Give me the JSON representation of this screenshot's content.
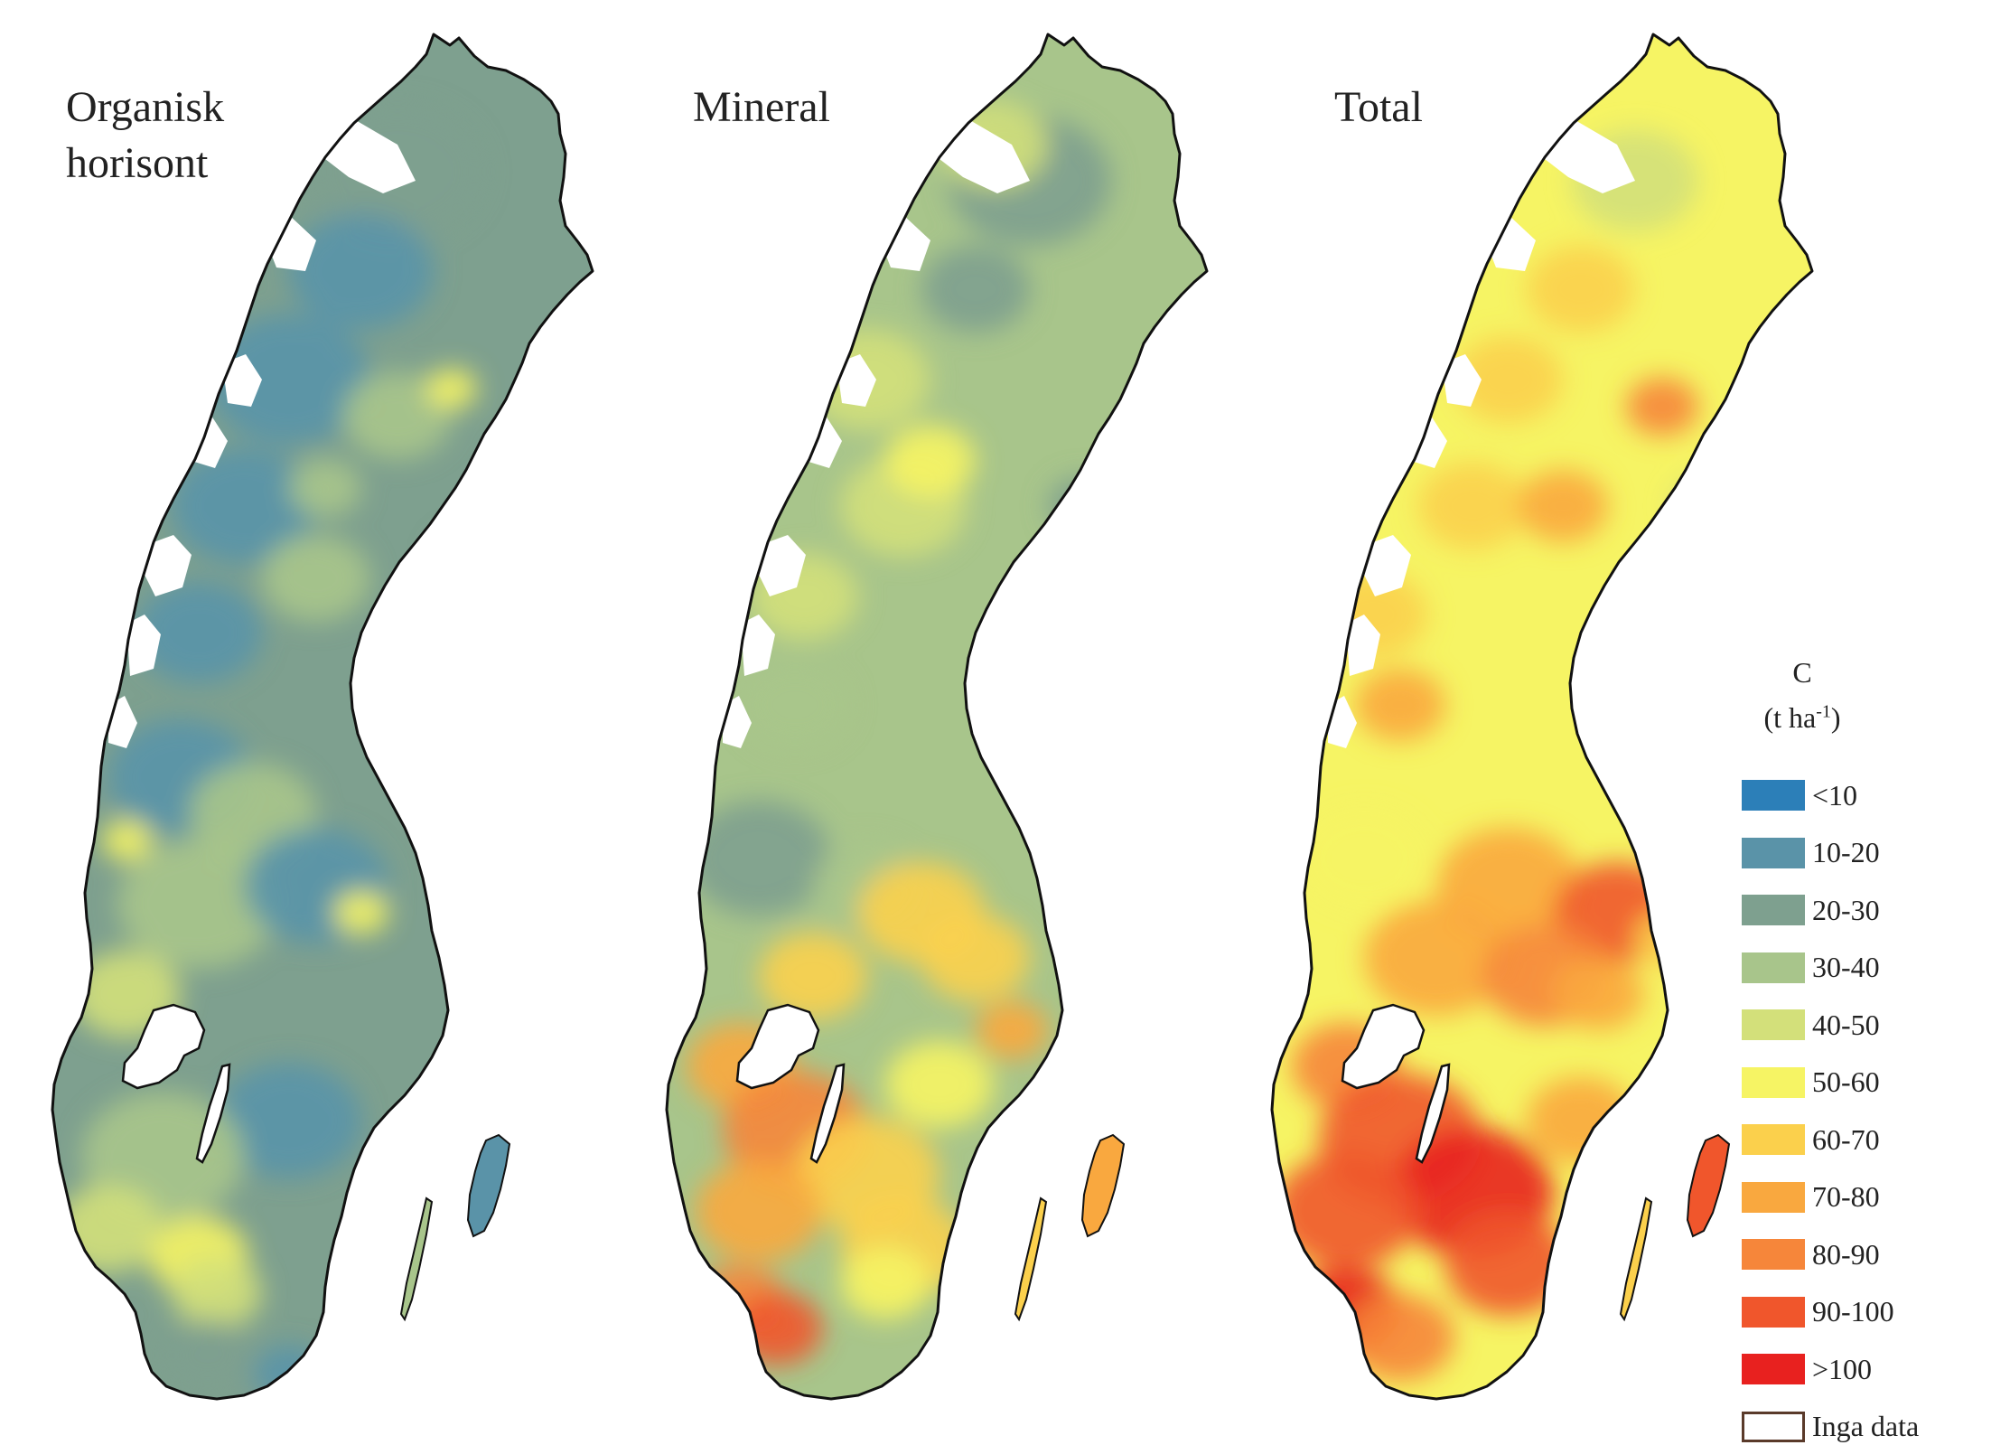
{
  "panels": [
    {
      "id": "organic",
      "title": "Organisk\nhorisont",
      "scheme": "organic"
    },
    {
      "id": "mineral",
      "title": "Mineral",
      "scheme": "mineral"
    },
    {
      "id": "total",
      "title": "Total",
      "scheme": "total"
    }
  ],
  "legend": {
    "title": "C",
    "unit": "(t ha",
    "unit_sup": "-1",
    "unit_end": ")",
    "classes": [
      {
        "label": "<10",
        "color": "#2c7fb8"
      },
      {
        "label": "10-20",
        "color": "#5a93a8"
      },
      {
        "label": "20-30",
        "color": "#7ea08f"
      },
      {
        "label": "30-40",
        "color": "#a8c58b"
      },
      {
        "label": "40-50",
        "color": "#d3e07a"
      },
      {
        "label": "50-60",
        "color": "#f6f464"
      },
      {
        "label": "60-70",
        "color": "#fbd04c"
      },
      {
        "label": "70-80",
        "color": "#f9a83f"
      },
      {
        "label": "80-90",
        "color": "#f6863a"
      },
      {
        "label": "90-100",
        "color": "#f0562c"
      },
      {
        "label": ">100",
        "color": "#e8211f"
      }
    ],
    "no_data": {
      "label": "Inga data",
      "color": "#ffffff",
      "border": "#5a3a2a"
    }
  }
}
